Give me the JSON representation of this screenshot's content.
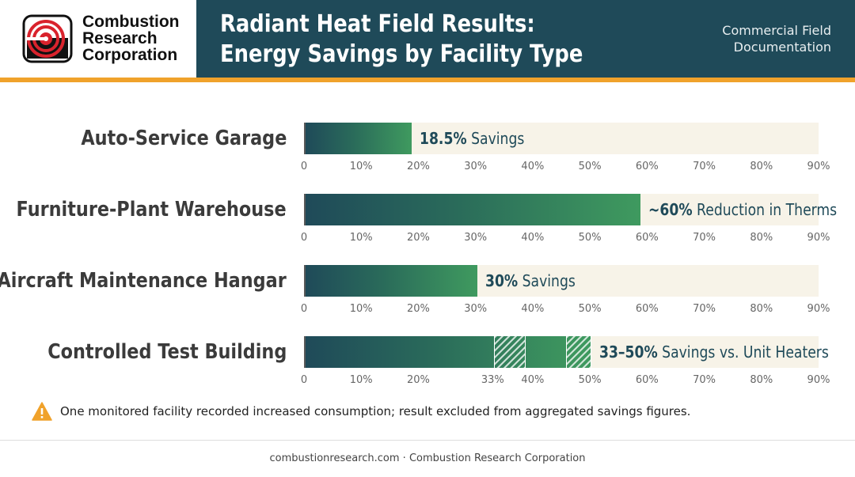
{
  "header": {
    "logo_lines": [
      "Combustion",
      "Research",
      "Corporation"
    ],
    "title_lines": [
      "Radiant Heat Field Results:",
      "Energy Savings by Facility Type"
    ],
    "doc_label_lines": [
      "Commercial Field",
      "Documentation"
    ]
  },
  "colors": {
    "header_bg": "#1f4a59",
    "accent_stripe": "#f0a22b",
    "bar_start": "#1f4a59",
    "bar_end": "#3f9a5f",
    "track": "#f7f3e8",
    "logo_red": "#d9232d",
    "warning": "#f0a22b"
  },
  "chart_data": {
    "type": "bar",
    "orientation": "horizontal",
    "xlim": [
      0,
      90
    ],
    "grid": false,
    "categories": [
      "Auto-Service Garage",
      "Furniture-Plant Warehouse",
      "Aircraft Maintenance Hangar",
      "Controlled Test Building"
    ],
    "values": [
      18.5,
      58.5,
      30,
      50
    ],
    "bars": [
      {
        "category": "Auto-Service Garage",
        "value": 18.5,
        "label_bold": "18.5%",
        "label_rest": " Savings",
        "ticks": [
          "0",
          "10%",
          "20%",
          "30%",
          "40%",
          "50%",
          "60%",
          "70%",
          "80%",
          "90%"
        ]
      },
      {
        "category": "Furniture-Plant Warehouse",
        "value": 58.5,
        "label_bold": "~60%",
        "label_rest": " Reduction in Therms",
        "ticks": [
          "0",
          "10%",
          "20%",
          "30%",
          "40%",
          "50%",
          "60%",
          "70%",
          "80%",
          "90%"
        ]
      },
      {
        "category": "Aircraft Maintenance Hangar",
        "value": 30,
        "label_bold": "30%",
        "label_rest": " Savings",
        "ticks": [
          "0",
          "10%",
          "20%",
          "30%",
          "40%",
          "50%",
          "60%",
          "70%",
          "80%",
          "90%"
        ]
      },
      {
        "category": "Controlled Test Building",
        "value": 50,
        "range": [
          33,
          50
        ],
        "label_bold": "33–50%",
        "label_rest": " Savings vs. Unit Heaters",
        "ticks": [
          "0",
          "10%",
          "20%",
          "33%",
          "40%",
          "50%",
          "60%",
          "70%",
          "80%",
          "90%"
        ],
        "tick_values": [
          0,
          10,
          20,
          33,
          40,
          50,
          60,
          70,
          80,
          90
        ]
      }
    ]
  },
  "note": {
    "icon": "warning-icon",
    "text": "One monitored facility recorded increased consumption; result excluded from aggregated savings figures."
  },
  "footer": {
    "text": "combustionresearch.com · Combustion Research Corporation"
  }
}
